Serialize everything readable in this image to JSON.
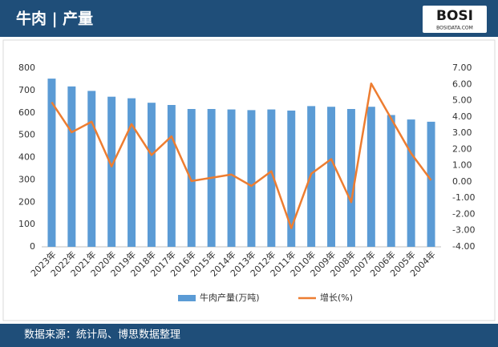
{
  "header": {
    "logo": "BOSI",
    "logo_sub": "BOSIDATA.COM"
  },
  "chart_data": {
    "type": "bar",
    "title": "牛肉 | 产量",
    "source": "数据来源：统计局、博思数据整理",
    "categories": [
      "2023年",
      "2022年",
      "2021年",
      "2020年",
      "2019年",
      "2018年",
      "2017年",
      "2016年",
      "2015年",
      "2014年",
      "2013年",
      "2012年",
      "2011年",
      "2010年",
      "2009年",
      "2008年",
      "2007年",
      "2006年",
      "2005年",
      "2004年"
    ],
    "series": [
      {
        "name": "牛肉产量(万吨)",
        "color": "#5b9bd5",
        "values": [
          753,
          718,
          698,
          672,
          665,
          645,
          635,
          617,
          617,
          615,
          612,
          615,
          610,
          630,
          627,
          617,
          627,
          590,
          570,
          560
        ]
      },
      {
        "name": "增长(%)",
        "color": "#ed7d31",
        "type": "line",
        "axis": "y2",
        "values": [
          4.9,
          3.05,
          3.7,
          0.95,
          3.55,
          1.65,
          2.8,
          0.05,
          0.25,
          0.45,
          -0.25,
          0.65,
          -2.85,
          0.5,
          1.4,
          -1.25,
          6.05,
          3.9,
          1.75,
          0.1
        ]
      }
    ],
    "ylim": [
      0,
      800
    ],
    "yticks": [
      0,
      100,
      200,
      300,
      400,
      500,
      600,
      700,
      800
    ],
    "y2lim": [
      -4,
      7
    ],
    "y2ticks": [
      {
        "value": -4,
        "label": "-4.00"
      },
      {
        "value": -3,
        "label": "-3.00"
      },
      {
        "value": -2,
        "label": "-2.00"
      },
      {
        "value": -1,
        "label": "-1.00"
      },
      {
        "value": 0,
        "label": "0.00"
      },
      {
        "value": 1,
        "label": "1.00"
      },
      {
        "value": 2,
        "label": "2.00"
      },
      {
        "value": 3,
        "label": "3.00"
      },
      {
        "value": 4,
        "label": "4.00"
      },
      {
        "value": 5,
        "label": "5.00"
      },
      {
        "value": 6,
        "label": "6.00"
      },
      {
        "value": 7,
        "label": "7.00"
      }
    ],
    "legend": "bottom"
  }
}
